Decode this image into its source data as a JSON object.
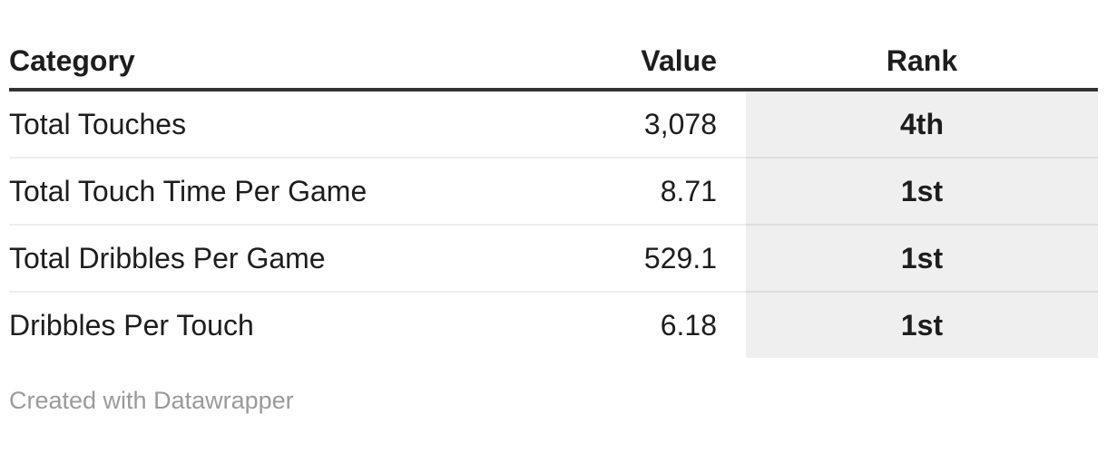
{
  "colors": {
    "background": "#ffffff",
    "text": "#1d1d1d",
    "header_rule": "#333333",
    "rank_column_background": "#efefef",
    "row_divider": "#ececec",
    "footer_text": "#9a9a9a"
  },
  "chart_data": {
    "type": "table",
    "columns": [
      "Category",
      "Value",
      "Rank"
    ],
    "rows": [
      {
        "category": "Total Touches",
        "value": "3,078",
        "rank": "4th"
      },
      {
        "category": "Total Touch Time Per Game",
        "value": "8.71",
        "rank": "1st"
      },
      {
        "category": "Total Dribbles Per Game",
        "value": "529.1",
        "rank": "1st"
      },
      {
        "category": "Dribbles Per Touch",
        "value": "6.18",
        "rank": "1st"
      }
    ],
    "numeric_values": [
      3078,
      8.71,
      529.1,
      6.18
    ],
    "ranks": [
      "4th",
      "1st",
      "1st",
      "1st"
    ],
    "layout_hints": {
      "value_alignment": "right",
      "rank_alignment": "center",
      "rank_column_shaded": true
    }
  },
  "footer": {
    "attribution": "Created with Datawrapper"
  }
}
